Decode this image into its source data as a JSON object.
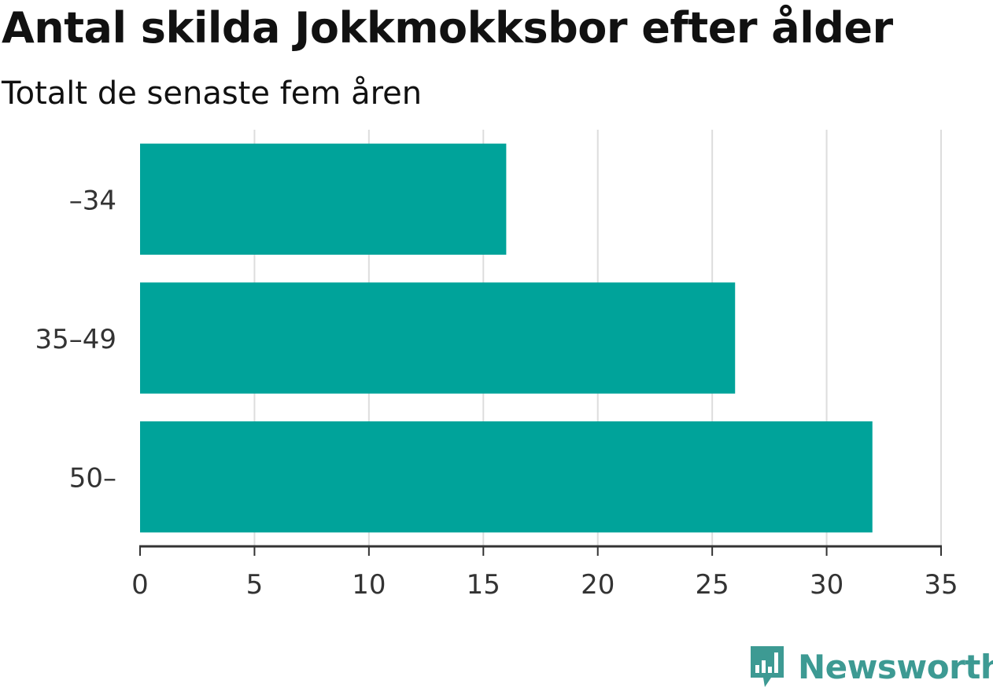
{
  "header": {
    "title": "Antal skilda Jokkmokksbor efter ålder",
    "subtitle": "Totalt de senaste fem åren"
  },
  "brand": {
    "name": "Newsworthy",
    "logo_icon": "bar-chart-speech-bubble-icon",
    "color": "#3d9a93"
  },
  "chart_data": {
    "type": "bar",
    "orientation": "horizontal",
    "categories": [
      "–34",
      "35–49",
      "50–"
    ],
    "values": [
      16,
      26,
      32
    ],
    "x_ticks": [
      "0",
      "5",
      "10",
      "15",
      "20",
      "25",
      "30",
      "35"
    ],
    "xlim": [
      0,
      35
    ],
    "grid": true,
    "bar_color": "#00a39a",
    "grid_color": "#dddddd",
    "axis_color": "#333333"
  }
}
